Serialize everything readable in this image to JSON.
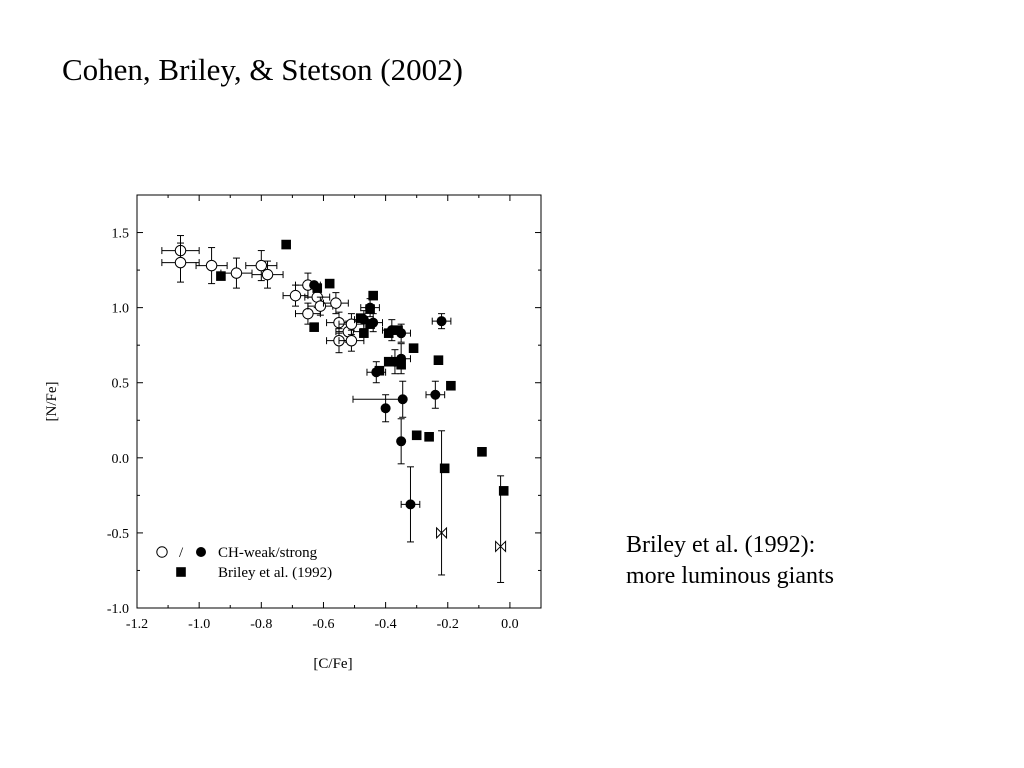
{
  "slide": {
    "title": "Cohen, Briley, & Stetson (2002)",
    "note_line1": "Briley et al. (1992):",
    "note_line2": "more luminous giants"
  },
  "chart_data": {
    "type": "scatter",
    "xlabel": "[C/Fe]",
    "ylabel": "[N/Fe]",
    "xlim": [
      -1.2,
      0.1
    ],
    "ylim": [
      -1.0,
      1.75
    ],
    "xticks": [
      -1.2,
      -1.0,
      -0.8,
      -0.6,
      -0.4,
      -0.2,
      0.0
    ],
    "yticks": [
      -1.0,
      -0.5,
      0.0,
      0.5,
      1.0,
      1.5
    ],
    "xtick_labels": [
      "-1.2",
      "-1.0",
      "-0.8",
      "-0.6",
      "-0.4",
      "-0.2",
      "0.0"
    ],
    "ytick_labels": [
      "-1.0",
      "-0.5",
      "0.0",
      "0.5",
      "1.0",
      "1.5"
    ],
    "grid": false,
    "legend_position": "bottom-left",
    "legend": [
      {
        "text": "/",
        "markers": [
          "open-circle",
          "filled-circle"
        ],
        "label": "CH-weak/strong"
      },
      {
        "text": "",
        "markers": [
          "filled-square"
        ],
        "label": "Briley et al. (1992)"
      }
    ],
    "series": [
      {
        "name": "CH-weak",
        "marker": "open-circle",
        "points": [
          {
            "x": -1.06,
            "y": 1.38,
            "xerr": 0.06,
            "yerr": 0.1
          },
          {
            "x": -1.06,
            "y": 1.3,
            "xerr": 0.06,
            "yerr": 0.13
          },
          {
            "x": -0.96,
            "y": 1.28,
            "xerr": 0.05,
            "yerr": 0.12
          },
          {
            "x": -0.88,
            "y": 1.23,
            "xerr": 0.05,
            "yerr": 0.1
          },
          {
            "x": -0.8,
            "y": 1.28,
            "xerr": 0.05,
            "yerr": 0.1
          },
          {
            "x": -0.78,
            "y": 1.22,
            "xerr": 0.05,
            "yerr": 0.09
          },
          {
            "x": -0.69,
            "y": 1.08,
            "xerr": 0.04,
            "yerr": 0.07
          },
          {
            "x": -0.65,
            "y": 1.15,
            "xerr": 0.04,
            "yerr": 0.08
          },
          {
            "x": -0.65,
            "y": 0.96,
            "xerr": 0.04,
            "yerr": 0.07
          },
          {
            "x": -0.62,
            "y": 1.07,
            "xerr": 0.04,
            "yerr": 0.07
          },
          {
            "x": -0.61,
            "y": 1.01,
            "xerr": 0.04,
            "yerr": 0.06
          },
          {
            "x": -0.56,
            "y": 1.03,
            "xerr": 0.04,
            "yerr": 0.07
          },
          {
            "x": -0.55,
            "y": 0.9,
            "xerr": 0.04,
            "yerr": 0.07
          },
          {
            "x": -0.55,
            "y": 0.78,
            "xerr": 0.04,
            "yerr": 0.08
          },
          {
            "x": -0.52,
            "y": 0.84,
            "xerr": 0.04,
            "yerr": 0.07
          },
          {
            "x": -0.51,
            "y": 0.89,
            "xerr": 0.04,
            "yerr": 0.07
          },
          {
            "x": -0.51,
            "y": 0.78,
            "xerr": 0.04,
            "yerr": 0.07
          }
        ]
      },
      {
        "name": "CH-strong",
        "marker": "filled-circle",
        "points": [
          {
            "x": -0.63,
            "y": 1.15,
            "xerr": 0.0,
            "yerr": 0.0
          },
          {
            "x": -0.47,
            "y": 0.92,
            "xerr": 0.03,
            "yerr": 0.06
          },
          {
            "x": -0.45,
            "y": 1.0,
            "xerr": 0.03,
            "yerr": 0.06
          },
          {
            "x": -0.44,
            "y": 0.9,
            "xerr": 0.03,
            "yerr": 0.06
          },
          {
            "x": -0.38,
            "y": 0.85,
            "xerr": 0.03,
            "yerr": 0.07
          },
          {
            "x": -0.35,
            "y": 0.83,
            "xerr": 0.03,
            "yerr": 0.06
          },
          {
            "x": -0.43,
            "y": 0.57,
            "xerr": 0.03,
            "yerr": 0.07
          },
          {
            "x": -0.37,
            "y": 0.64,
            "xerr": 0.03,
            "yerr": 0.08
          },
          {
            "x": -0.35,
            "y": 0.66,
            "xerr": 0.03,
            "yerr": 0.1
          },
          {
            "x": -0.4,
            "y": 0.33,
            "xerr": 0.0,
            "yerr": 0.09
          },
          {
            "x": -0.345,
            "y": 0.39,
            "xerr": 0.0,
            "yerr": 0.12
          },
          {
            "x": -0.35,
            "y": 0.11,
            "xerr": 0.0,
            "yerr": 0.15
          },
          {
            "x": -0.32,
            "y": -0.31,
            "xerr": 0.03,
            "yerr": 0.25
          },
          {
            "x": -0.24,
            "y": 0.42,
            "xerr": 0.03,
            "yerr": 0.09
          },
          {
            "x": -0.22,
            "y": 0.91,
            "xerr": 0.03,
            "yerr": 0.05
          }
        ]
      },
      {
        "name": "Briley et al. (1992)",
        "marker": "filled-square",
        "points": [
          {
            "x": -0.72,
            "y": 1.42
          },
          {
            "x": -0.93,
            "y": 1.21
          },
          {
            "x": -0.58,
            "y": 1.16
          },
          {
            "x": -0.62,
            "y": 1.13
          },
          {
            "x": -0.63,
            "y": 0.87
          },
          {
            "x": -0.44,
            "y": 1.08
          },
          {
            "x": -0.45,
            "y": 0.99
          },
          {
            "x": -0.48,
            "y": 0.93
          },
          {
            "x": -0.45,
            "y": 0.89
          },
          {
            "x": -0.47,
            "y": 0.83
          },
          {
            "x": -0.39,
            "y": 0.83
          },
          {
            "x": -0.36,
            "y": 0.85
          },
          {
            "x": -0.31,
            "y": 0.73
          },
          {
            "x": -0.39,
            "y": 0.64
          },
          {
            "x": -0.35,
            "y": 0.62
          },
          {
            "x": -0.23,
            "y": 0.65
          },
          {
            "x": -0.19,
            "y": 0.48
          },
          {
            "x": -0.42,
            "y": 0.58
          },
          {
            "x": -0.3,
            "y": 0.15
          },
          {
            "x": -0.26,
            "y": 0.14
          },
          {
            "x": -0.21,
            "y": -0.07
          },
          {
            "x": -0.09,
            "y": 0.04
          },
          {
            "x": -0.02,
            "y": -0.22
          }
        ]
      },
      {
        "name": "upper-limit",
        "marker": "bowtie",
        "points": [
          {
            "x": -0.22,
            "y": -0.5,
            "yerr_up": 0.68,
            "yerr_down": 0.28
          },
          {
            "x": -0.03,
            "y": -0.59,
            "yerr_up": 0.47,
            "yerr_down": 0.24
          }
        ]
      }
    ],
    "extra_bars": [
      {
        "x": -0.345,
        "y": 0.39,
        "xerr_low": 0.16,
        "xerr_high": 0.0
      }
    ]
  }
}
